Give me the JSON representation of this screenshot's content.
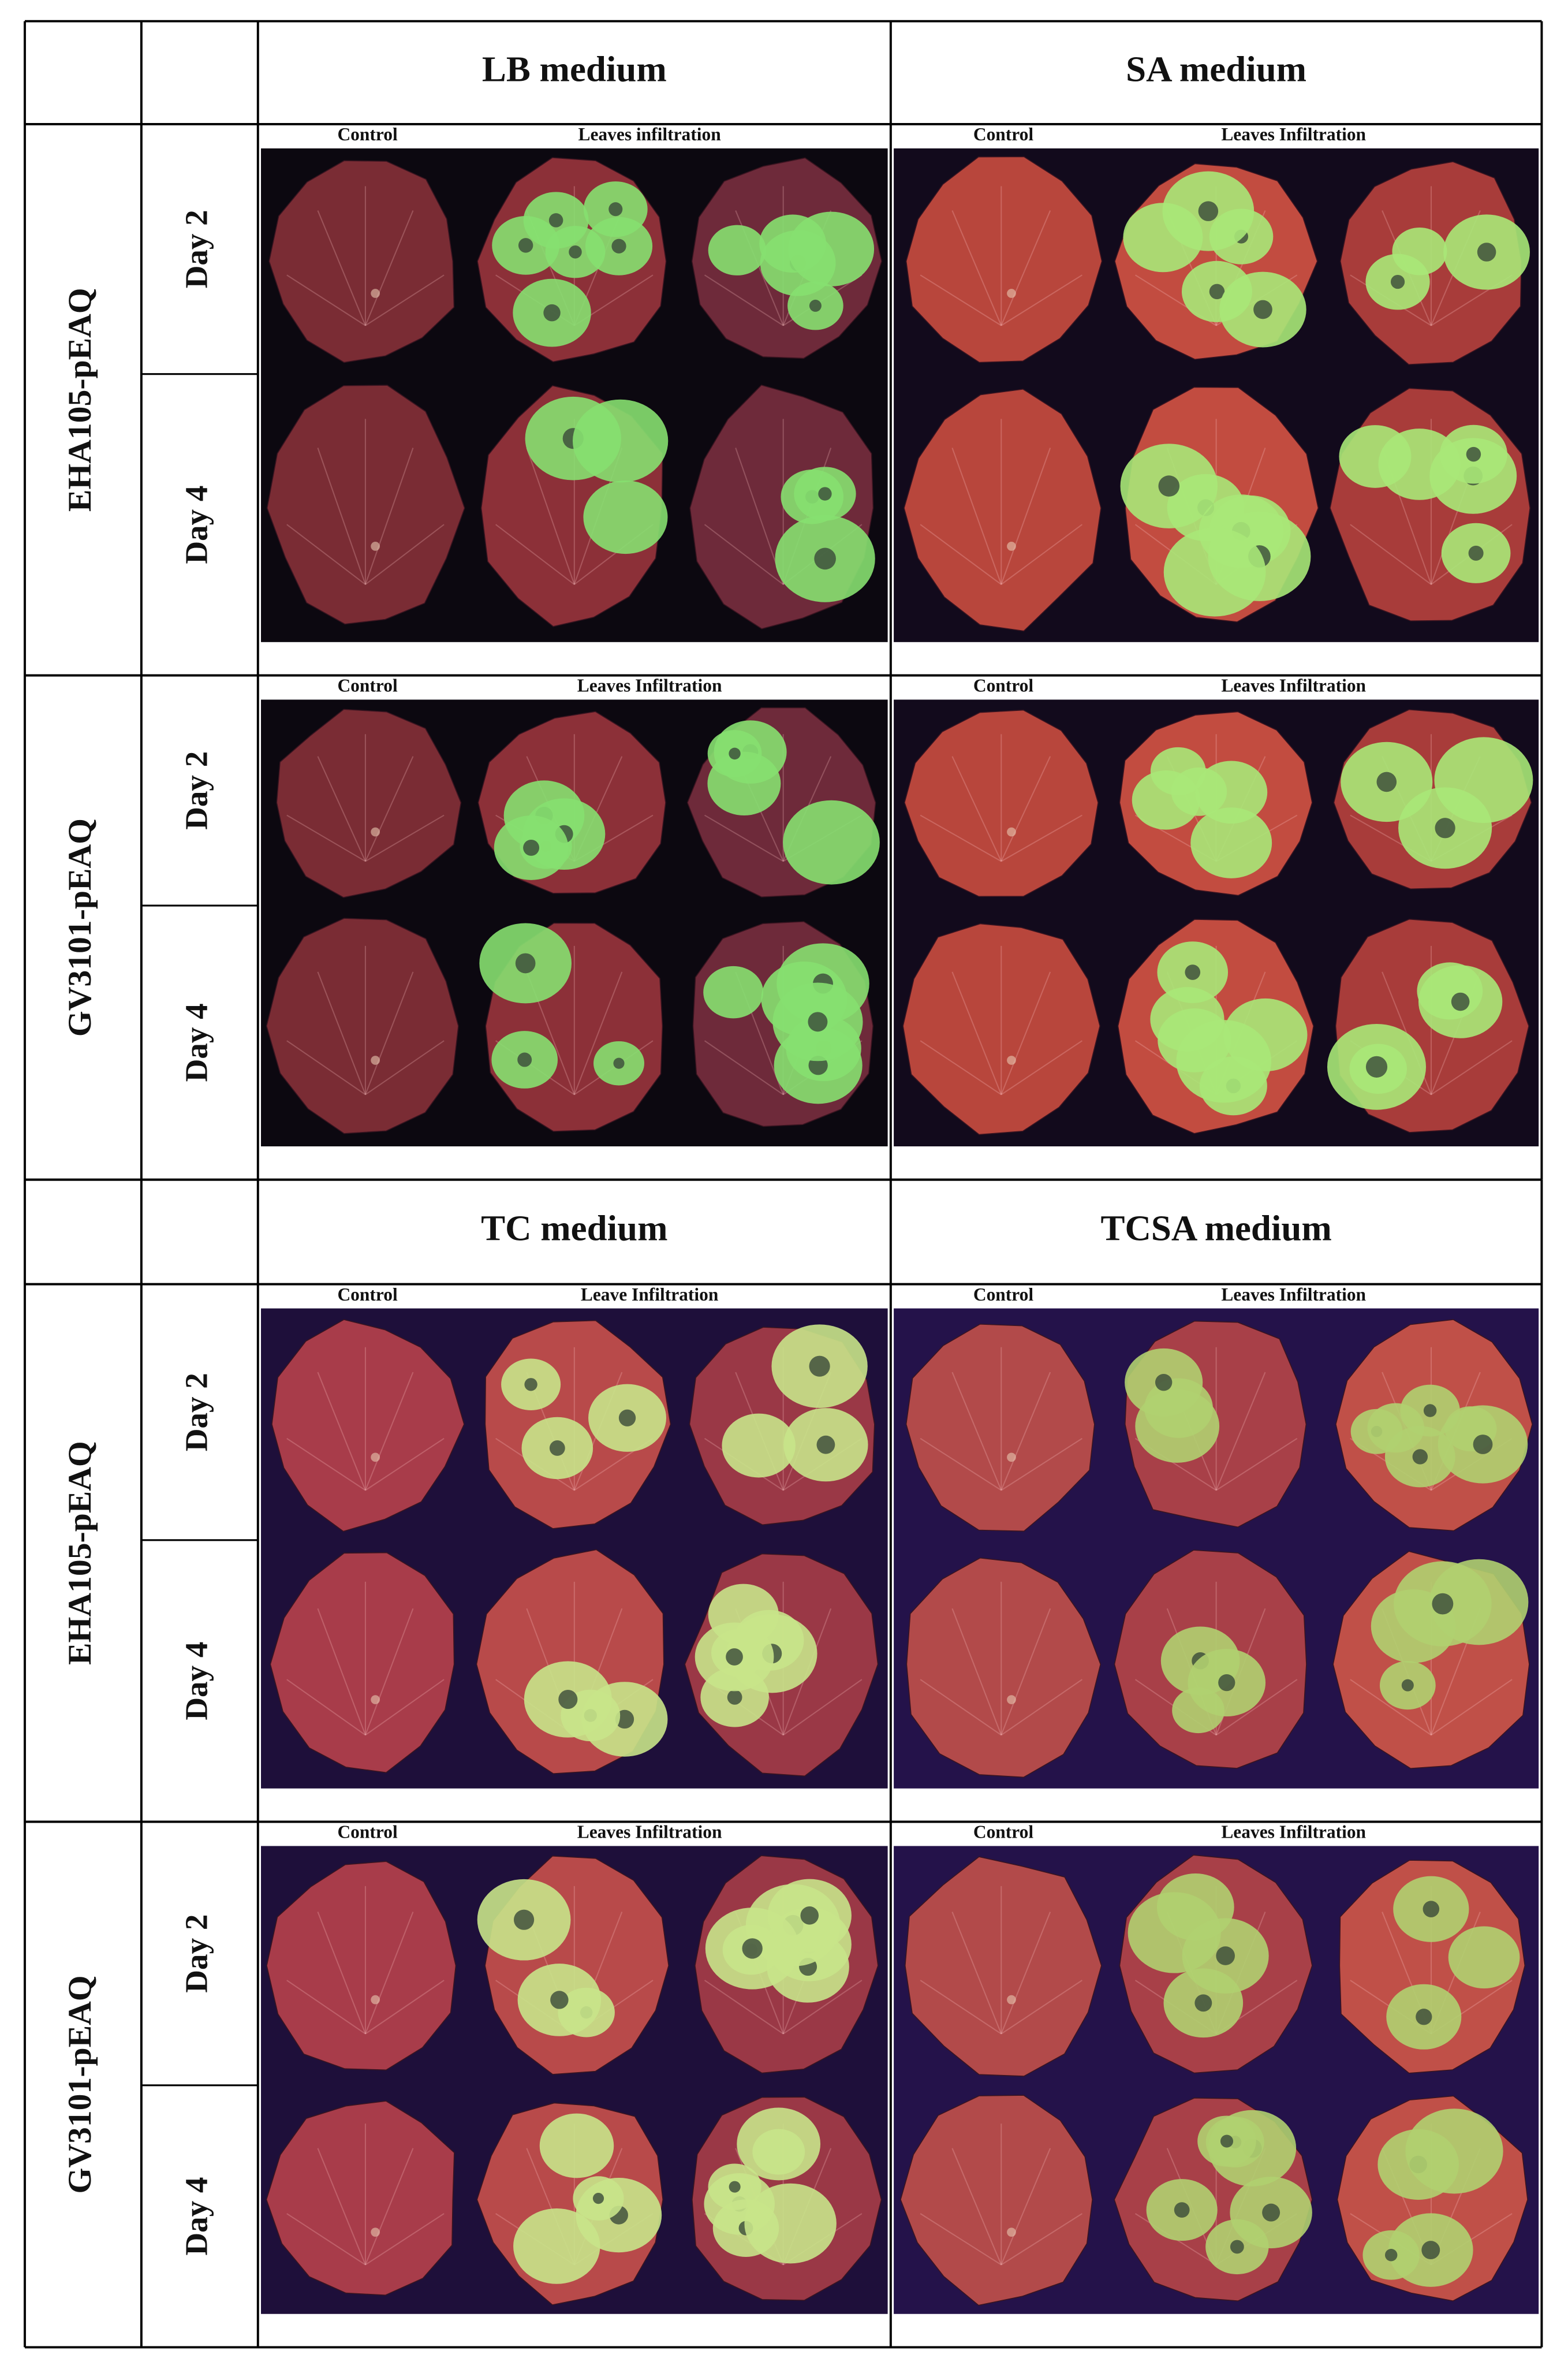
{
  "table": {
    "sections": [
      {
        "headers": [
          "LB medium",
          "SA medium"
        ],
        "rows": [
          {
            "strain": "EHA105-pEAQ",
            "days": [
              "Day 2",
              "Day 4"
            ],
            "panels": [
              {
                "control": "Control",
                "infiltration": "Leaves infiltration"
              },
              {
                "control": "Control",
                "infiltration": "Leaves Infiltration"
              }
            ]
          },
          {
            "strain": "GV3101-pEAQ",
            "days": [
              "Day 2",
              "Day 4"
            ],
            "panels": [
              {
                "control": "Control",
                "infiltration": "Leaves Infiltration"
              },
              {
                "control": "Control",
                "infiltration": "Leaves Infiltration"
              }
            ]
          }
        ]
      },
      {
        "headers": [
          "TC medium",
          "TCSA medium"
        ],
        "rows": [
          {
            "strain": "EHA105-pEAQ",
            "days": [
              "Day 2",
              "Day 4"
            ],
            "panels": [
              {
                "control": "Control",
                "infiltration": "Leave Infiltration"
              },
              {
                "control": "Control",
                "infiltration": "Leaves Infiltration"
              }
            ]
          },
          {
            "strain": "GV3101-pEAQ",
            "days": [
              "Day 2",
              "Day 4"
            ],
            "panels": [
              {
                "control": "Control",
                "infiltration": "Leaves Infiltration"
              },
              {
                "control": "Control",
                "infiltration": "Leaves Infiltration"
              }
            ]
          }
        ]
      }
    ]
  }
}
